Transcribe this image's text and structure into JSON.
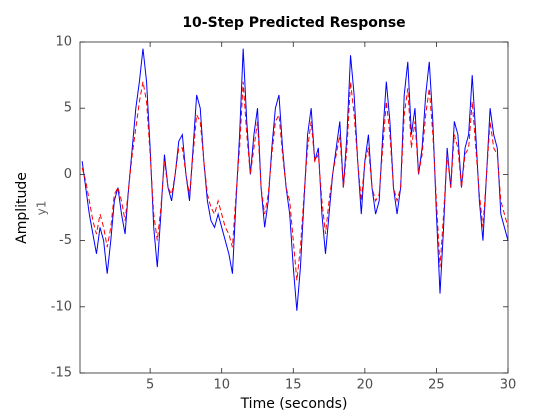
{
  "chart_data": {
    "type": "line",
    "title": "10-Step Predicted Response",
    "xlabel": "Time (seconds)",
    "ylabel": "Amplitude",
    "ylabel2": "y1",
    "xlim": [
      0.1,
      30
    ],
    "ylim": [
      -15,
      10
    ],
    "xticks": [
      5,
      10,
      15,
      20,
      25,
      30
    ],
    "yticks": [
      -15,
      -10,
      -5,
      0,
      5,
      10
    ],
    "grid": false,
    "x": [
      0.25,
      0.5,
      0.75,
      1,
      1.25,
      1.5,
      1.75,
      2,
      2.25,
      2.5,
      2.75,
      3,
      3.25,
      3.5,
      3.75,
      4,
      4.25,
      4.5,
      4.75,
      5,
      5.25,
      5.5,
      5.75,
      6,
      6.25,
      6.5,
      6.75,
      7,
      7.25,
      7.5,
      7.75,
      8,
      8.25,
      8.5,
      8.75,
      9,
      9.25,
      9.5,
      9.75,
      10,
      10.25,
      10.5,
      10.75,
      11,
      11.25,
      11.5,
      11.75,
      12,
      12.25,
      12.5,
      12.75,
      13,
      13.25,
      13.5,
      13.75,
      14,
      14.25,
      14.5,
      14.75,
      15,
      15.25,
      15.5,
      15.75,
      16,
      16.25,
      16.5,
      16.75,
      17,
      17.25,
      17.5,
      17.75,
      18,
      18.25,
      18.5,
      18.75,
      19,
      19.25,
      19.5,
      19.75,
      20,
      20.25,
      20.5,
      20.75,
      21,
      21.25,
      21.5,
      21.75,
      22,
      22.25,
      22.5,
      22.75,
      23,
      23.25,
      23.5,
      23.75,
      24,
      24.25,
      24.5,
      24.75,
      25,
      25.25,
      25.5,
      25.75,
      26,
      26.25,
      26.5,
      26.75,
      27,
      27.25,
      27.5,
      27.75,
      28,
      28.25,
      28.5,
      28.75,
      29,
      29.25,
      29.5,
      29.75,
      30
    ],
    "series": [
      {
        "color": "#0000ff",
        "dash": false,
        "values": [
          1,
          -1,
          -3,
          -4.5,
          -6,
          -4,
          -5,
          -7.5,
          -5,
          -2,
          -1,
          -3,
          -4.5,
          -1,
          2,
          5,
          7,
          9.5,
          7,
          2,
          -4,
          -7,
          -3,
          1.5,
          -1,
          -2,
          0,
          2.5,
          3,
          0,
          -2,
          2,
          6,
          5,
          1,
          -2,
          -3.5,
          -4,
          -3,
          -4,
          -5,
          -6,
          -7.5,
          -2,
          3,
          9.5,
          4,
          0,
          3,
          5,
          -1,
          -4,
          -2,
          2,
          5,
          6,
          2,
          -1,
          -3,
          -7,
          -10.3,
          -7,
          -2,
          3,
          5,
          1,
          2,
          -3,
          -6,
          -3,
          0,
          2,
          4,
          -1,
          3,
          9,
          6,
          1,
          -3,
          1,
          3,
          -1,
          -3,
          -2,
          3,
          7,
          4,
          -1,
          -3,
          -1,
          6,
          8.5,
          3,
          5,
          0,
          2,
          6,
          8.5,
          4,
          -3,
          -9,
          -4,
          2,
          -1,
          4,
          3,
          -1,
          2,
          3,
          7.5,
          3,
          -2,
          -5,
          0,
          5,
          3,
          2,
          -3,
          -4,
          -5
        ]
      },
      {
        "color": "#ff0000",
        "dash": true,
        "values": [
          0.5,
          -0.5,
          -2,
          -3.5,
          -4.5,
          -3,
          -4,
          -5.5,
          -4,
          -1.5,
          -1,
          -2,
          -3.5,
          -1,
          1.5,
          3.5,
          5.5,
          7,
          5.5,
          1.5,
          -3,
          -5,
          -2.5,
          1,
          -1,
          -1.5,
          0,
          2,
          2,
          0,
          -1.5,
          1.5,
          4.5,
          4,
          1,
          -1.5,
          -2.5,
          -3,
          -2,
          -3,
          -4,
          -4.5,
          -5.5,
          -1.5,
          2,
          7,
          3,
          0,
          2,
          4,
          -1,
          -3,
          -1.5,
          1.5,
          4,
          4.5,
          1.5,
          -1,
          -2,
          -5,
          -8,
          -5.5,
          -1.5,
          2,
          4,
          1,
          1.5,
          -2,
          -4.5,
          -2,
          0,
          1.5,
          3,
          -1,
          2,
          7,
          4.5,
          1,
          -2,
          1,
          2,
          -1,
          -2,
          -1.5,
          2,
          5.5,
          3,
          -1,
          -2,
          -1,
          4.5,
          6.5,
          2,
          4,
          0,
          1.5,
          4.5,
          6.5,
          3,
          -2,
          -7,
          -3,
          1.5,
          -1,
          3,
          2,
          -1,
          1.5,
          2,
          5.5,
          2,
          -1.5,
          -4,
          0,
          4,
          2,
          1.5,
          -2,
          -3,
          -4
        ]
      }
    ]
  }
}
